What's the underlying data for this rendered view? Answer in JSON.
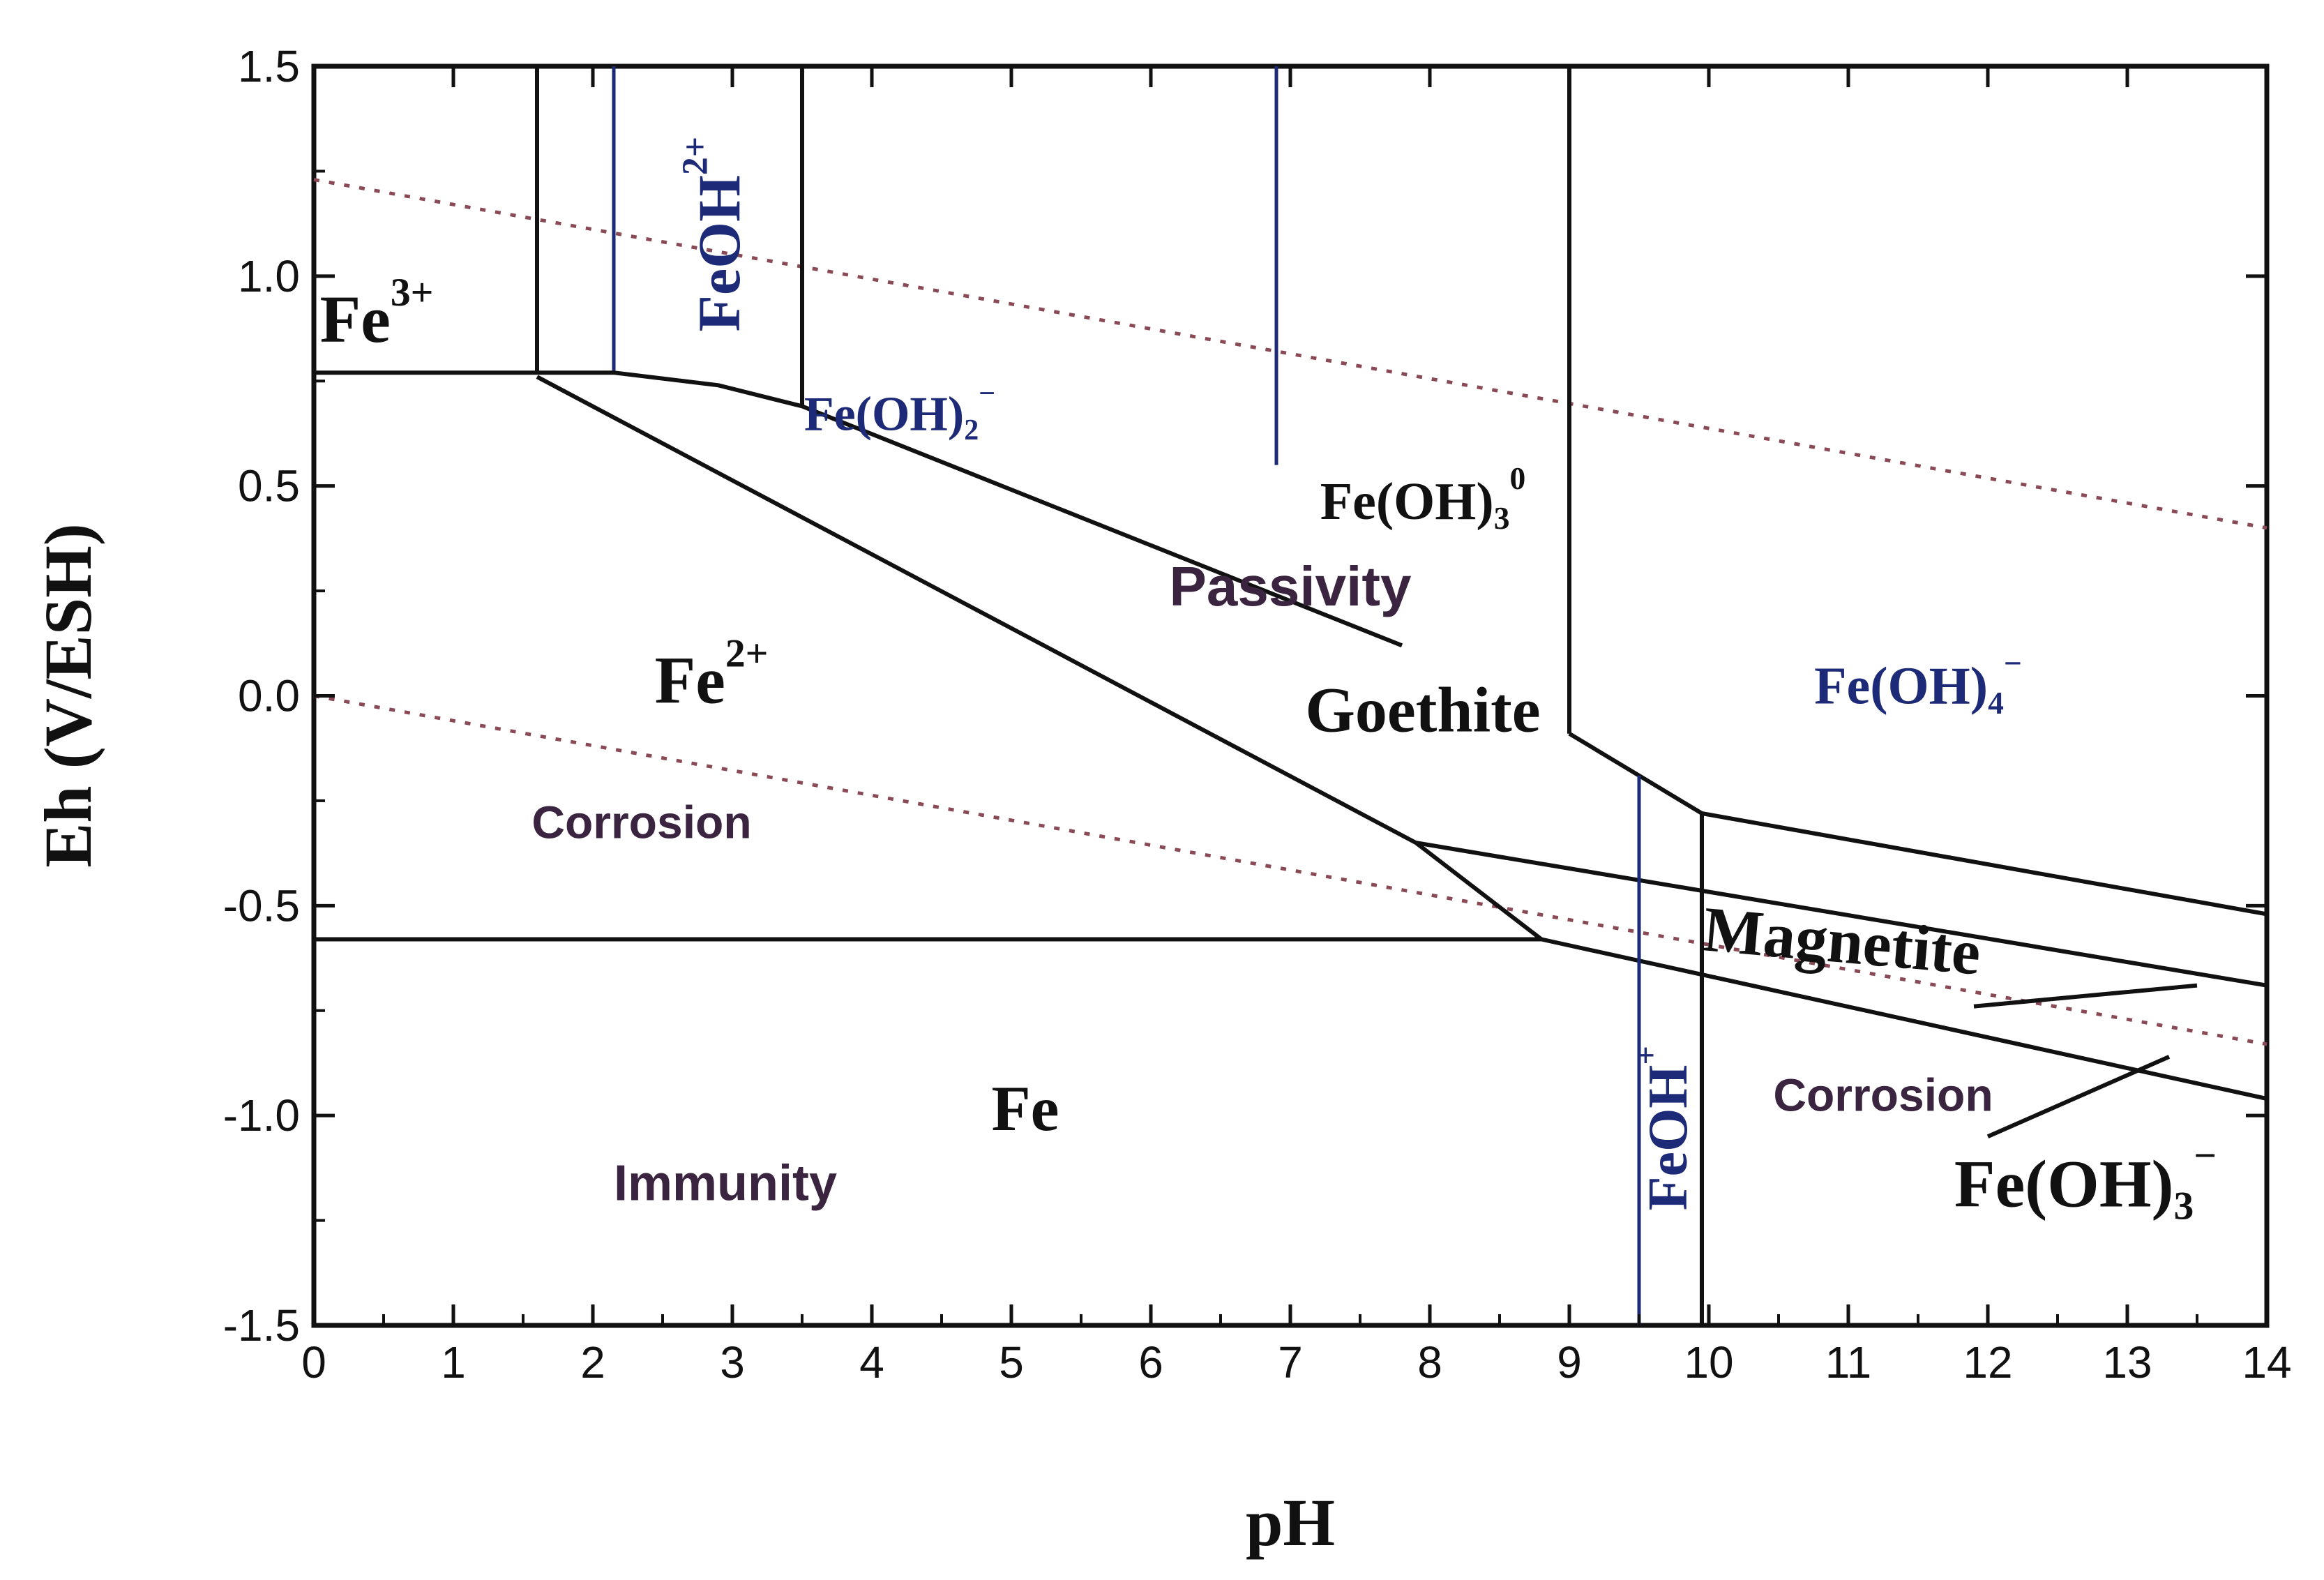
{
  "chart_data": {
    "type": "phase-diagram",
    "xlabel": "pH",
    "ylabel": "Eh  (V/ESH)",
    "xlim": [
      0,
      14
    ],
    "ylim": [
      -1.5,
      1.5
    ],
    "x_ticks": [
      "0",
      "1",
      "2",
      "3",
      "4",
      "5",
      "6",
      "7",
      "8",
      "9",
      "10",
      "11",
      "12",
      "13",
      "14"
    ],
    "y_ticks": [
      "1.5",
      "1.0",
      "0.5",
      "0.0",
      "-0.5",
      "-1.0",
      "-1.5"
    ],
    "boundaries": [
      {
        "id": "fe3-fe2",
        "color": "#111111",
        "points": [
          [
            0,
            0.77
          ],
          [
            1.6,
            0.77
          ]
        ]
      },
      {
        "id": "fe3-feoh2",
        "color": "#111111",
        "points": [
          [
            1.6,
            0.77
          ],
          [
            1.6,
            1.5
          ]
        ]
      },
      {
        "id": "feoh2-upper",
        "color": "#1c2a78",
        "points": [
          [
            2.15,
            0.77
          ],
          [
            2.15,
            1.5
          ]
        ]
      },
      {
        "id": "feoh2-feoh2p",
        "color": "#111111",
        "points": [
          [
            3.5,
            0.69
          ],
          [
            3.5,
            1.5
          ]
        ]
      },
      {
        "id": "fe2-upper",
        "color": "#111111",
        "points": [
          [
            1.6,
            0.77
          ],
          [
            2.15,
            0.77
          ],
          [
            2.9,
            0.74
          ],
          [
            3.5,
            0.69
          ],
          [
            7.8,
            0.12
          ]
        ]
      },
      {
        "id": "fe2-goethite",
        "color": "#111111",
        "points": [
          [
            1.6,
            0.76
          ],
          [
            7.9,
            -0.35
          ],
          [
            8.8,
            -0.58
          ]
        ]
      },
      {
        "id": "feoh3-vertical",
        "color": "#1c2a78",
        "points": [
          [
            6.9,
            0.55
          ],
          [
            6.9,
            1.5
          ]
        ]
      },
      {
        "id": "feoh4-vertical",
        "color": "#111111",
        "points": [
          [
            9.0,
            -0.09
          ],
          [
            9.0,
            1.5
          ]
        ]
      },
      {
        "id": "goethite-feoh4",
        "color": "#111111",
        "points": [
          [
            9.0,
            -0.09
          ],
          [
            9.5,
            -0.19
          ],
          [
            9.95,
            -0.28
          ],
          [
            14,
            -0.52
          ]
        ]
      },
      {
        "id": "magnetite-upper",
        "color": "#111111",
        "points": [
          [
            7.9,
            -0.35
          ],
          [
            14,
            -0.69
          ]
        ]
      },
      {
        "id": "magnetite-lower",
        "color": "#111111",
        "points": [
          [
            8.8,
            -0.58
          ],
          [
            14,
            -0.96
          ]
        ]
      },
      {
        "id": "fe-fe2",
        "color": "#111111",
        "points": [
          [
            0,
            -0.58
          ],
          [
            8.8,
            -0.58
          ]
        ]
      },
      {
        "id": "feoh-left",
        "color": "#1c2a78",
        "points": [
          [
            9.5,
            -0.19
          ],
          [
            9.5,
            -1.5
          ]
        ]
      },
      {
        "id": "feoh-right",
        "color": "#111111",
        "points": [
          [
            9.95,
            -0.28
          ],
          [
            9.95,
            -1.5
          ]
        ]
      },
      {
        "id": "feoh3m-wedge",
        "color": "#111111",
        "points": [
          [
            11.9,
            -0.74
          ],
          [
            13.5,
            -0.69
          ]
        ]
      },
      {
        "id": "feoh3m-pointer",
        "color": "#111111",
        "points": [
          [
            12.0,
            -1.05
          ],
          [
            13.3,
            -0.86
          ]
        ]
      }
    ],
    "water_lines": [
      {
        "id": "oxygen-line",
        "points": [
          [
            0,
            1.23
          ],
          [
            14,
            0.4
          ]
        ]
      },
      {
        "id": "hydrogen-line",
        "points": [
          [
            0,
            0.0
          ],
          [
            14,
            -0.83
          ]
        ]
      }
    ],
    "species_labels": [
      {
        "id": "fe3",
        "text": "Fe",
        "sup": "3+",
        "x": 0.45,
        "y": 0.88,
        "size": 96,
        "rotate": 0,
        "color": "black"
      },
      {
        "id": "feoh2plus",
        "text": "FeOH",
        "sup": "2+",
        "x": 2.95,
        "y": 1.1,
        "size": 86,
        "rotate": -90,
        "color": "blue"
      },
      {
        "id": "feoh2minus",
        "text": "Fe(OH)",
        "sub": "2",
        "sup": "−",
        "x": 4.2,
        "y": 0.66,
        "size": 70,
        "rotate": 0,
        "color": "blue"
      },
      {
        "id": "feoh3zero",
        "text": "Fe(OH)",
        "sub": "3",
        "sup": "0",
        "x": 7.95,
        "y": 0.45,
        "size": 76,
        "rotate": 0,
        "color": "black"
      },
      {
        "id": "fe2",
        "text": "Fe",
        "sup": "2+",
        "x": 2.85,
        "y": 0.02,
        "size": 96,
        "rotate": 0,
        "color": "black"
      },
      {
        "id": "goethite",
        "text": "Goethite",
        "x": 7.95,
        "y": -0.05,
        "size": 92,
        "rotate": 0,
        "color": "black"
      },
      {
        "id": "feoh4",
        "text": "Fe(OH)",
        "sub": "4",
        "sup": "−",
        "x": 11.5,
        "y": 0.01,
        "size": 76,
        "rotate": 0,
        "color": "blue"
      },
      {
        "id": "magnetite",
        "text": "Magnetite",
        "x": 10.95,
        "y": -0.6,
        "size": 92,
        "rotate": 5,
        "color": "black"
      },
      {
        "id": "fe",
        "text": "Fe",
        "x": 5.1,
        "y": -1.0,
        "size": 92,
        "rotate": 0,
        "color": "black"
      },
      {
        "id": "feohplus",
        "text": "FeOH",
        "sup": "+",
        "x": 9.75,
        "y": -1.03,
        "size": 80,
        "rotate": -90,
        "color": "blue"
      },
      {
        "id": "feoh3minus",
        "text": "Fe(OH)",
        "sub": "3",
        "sup": "−",
        "x": 12.7,
        "y": -1.18,
        "size": 96,
        "rotate": 0,
        "color": "black"
      }
    ],
    "region_labels": [
      {
        "id": "passivity",
        "text": "Passivity",
        "x": 7.0,
        "y": 0.25,
        "size": 80
      },
      {
        "id": "corrosion-left",
        "text": "Corrosion",
        "x": 2.35,
        "y": -0.31,
        "size": 66
      },
      {
        "id": "corrosion-right",
        "text": "Corrosion",
        "x": 11.25,
        "y": -0.96,
        "size": 66
      },
      {
        "id": "immunity",
        "text": "Immunity",
        "x": 2.95,
        "y": -1.17,
        "size": 72
      }
    ]
  }
}
